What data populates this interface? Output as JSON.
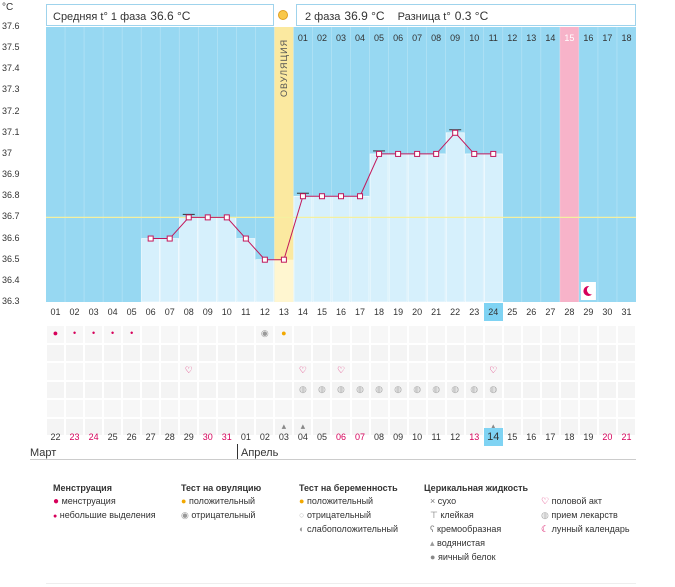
{
  "y_unit": "°C",
  "phase1": {
    "label": "Средняя t° 1 фаза",
    "value": "36.6 °C"
  },
  "phase2": {
    "label": "2 фаза",
    "value": "36.9 °C"
  },
  "diff": {
    "label": "Разница t°",
    "value": "0.3 °C"
  },
  "ovulation_label": "ОВУЛЯЦИЯ",
  "top_days": [
    "01",
    "02",
    "03",
    "04",
    "05",
    "06",
    "07",
    "08",
    "09",
    "10",
    "11",
    "12",
    "13",
    "14",
    "15",
    "16",
    "17",
    "18"
  ],
  "cycle_days": [
    "01",
    "02",
    "03",
    "04",
    "05",
    "06",
    "07",
    "08",
    "09",
    "10",
    "11",
    "12",
    "13",
    "14",
    "15",
    "16",
    "17",
    "18",
    "19",
    "20",
    "21",
    "22",
    "23",
    "24",
    "25",
    "26",
    "27",
    "28",
    "29",
    "30",
    "31"
  ],
  "calendar_days": [
    "22",
    "23",
    "24",
    "25",
    "26",
    "27",
    "28",
    "29",
    "30",
    "31",
    "01",
    "02",
    "03",
    "04",
    "05",
    "06",
    "07",
    "08",
    "09",
    "10",
    "11",
    "12",
    "13",
    "14",
    "15",
    "16",
    "17",
    "18",
    "19",
    "20",
    "21"
  ],
  "month_left": "Март",
  "month_right": "Апрель",
  "chart_data": {
    "type": "line",
    "ylim": [
      36.3,
      37.6
    ],
    "y_ticks": [
      "37.6",
      "37.5",
      "37.4",
      "37.3",
      "37.2",
      "37.1",
      "37",
      "36.9",
      "36.8",
      "36.7",
      "36.6",
      "36.5",
      "36.4",
      "36.3"
    ],
    "coverline": 36.7,
    "x": [
      6,
      7,
      8,
      9,
      10,
      11,
      12,
      13,
      14,
      15,
      16,
      17,
      18,
      19,
      20,
      21,
      22,
      23,
      24
    ],
    "values": [
      36.6,
      36.6,
      36.7,
      36.7,
      36.7,
      36.6,
      36.5,
      36.5,
      36.8,
      36.8,
      36.8,
      36.8,
      37.0,
      37.0,
      37.0,
      37.0,
      37.1,
      37.0,
      37.0
    ],
    "ovulation_day": 13,
    "highlight_day": 28,
    "today_day": 24
  },
  "legend": {
    "menstruation": {
      "title": "Менструация",
      "items": [
        "менструация",
        "небольшие выделения"
      ]
    },
    "ovulation_test": {
      "title": "Тест на овуляцию",
      "items": [
        "положительный",
        "отрицательный"
      ]
    },
    "pregnancy_test": {
      "title": "Тест на беременность",
      "items": [
        "положительный",
        "отрицательный",
        "слабоположительный"
      ]
    },
    "cervical": {
      "title": "Церикальная жидкость",
      "items": [
        "сухо",
        "клейкая",
        "кремообразная",
        "водянистая",
        "яичный белок"
      ]
    },
    "other": {
      "items": [
        "половой акт",
        "прием лекарств",
        "лунный календарь"
      ]
    }
  },
  "colors": {
    "sky": "#97d8f2",
    "bar": "#d6f0fc",
    "line": "#c2185b",
    "ovulation": "#fbe9a0",
    "pink": "#f7b3c9",
    "coverline": "#f5f0a0"
  }
}
